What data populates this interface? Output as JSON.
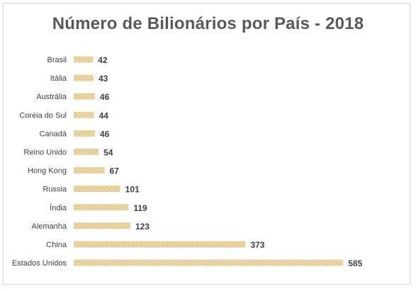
{
  "chart_data": {
    "type": "bar",
    "orientation": "horizontal",
    "title": "Número de Bilionários por País - 2018",
    "xlabel": "",
    "ylabel": "",
    "categories": [
      "Brasil",
      "Itália",
      "Austrália",
      "Coréia do Sul",
      "Canadá",
      "Reino Unido",
      "Hong Kong",
      "Russia",
      "Índia",
      "Alemanha",
      "China",
      "Estados Unidos"
    ],
    "values": [
      42,
      43,
      46,
      44,
      46,
      54,
      67,
      101,
      119,
      123,
      373,
      585
    ],
    "xlim": [
      0,
      600
    ],
    "grid": false,
    "legend": "none",
    "data_labels": true,
    "bar_color": "#e8cf97"
  }
}
